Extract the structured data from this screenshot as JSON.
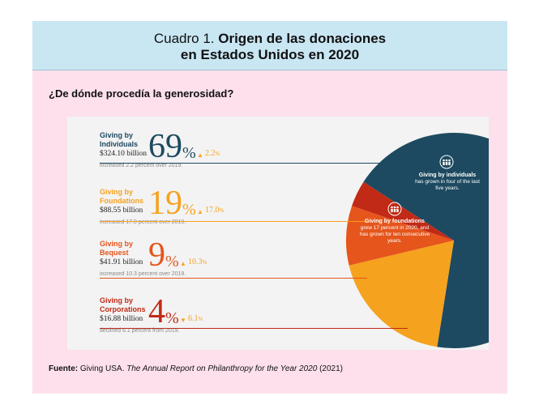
{
  "header": {
    "title_prefix": "Cuadro 1.",
    "title_line1_bold": "Origen de las donaciones",
    "title_line2": "en Estados Unidos en 2020"
  },
  "subtitle": "¿De dónde procedía la generosidad?",
  "source": {
    "label": "Fuente:",
    "text": "Giving USA.",
    "italic": "The Annual Report on Philanthropy for the Year 2020",
    "year": "(2021)"
  },
  "chart_data": {
    "type": "pie",
    "title": "¿De dónde procedía la generosidad?",
    "series": [
      {
        "name": "Giving by Individuals",
        "category_lines": [
          "Giving by",
          "Individuals"
        ],
        "percent": 69,
        "percent_label": "69",
        "amount": "$324.10 billion",
        "change": "2.2",
        "direction": "up",
        "note": "increased 2.2 percent over 2019.",
        "color": "#1d4a60"
      },
      {
        "name": "Giving by Foundations",
        "category_lines": [
          "Giving by",
          "Foundations"
        ],
        "percent": 19,
        "percent_label": "19",
        "amount": "$88.55 billion",
        "change": "17.0",
        "direction": "up",
        "note": "increased 17.0 percent over 2019.",
        "color": "#f5a21e"
      },
      {
        "name": "Giving by Bequest",
        "category_lines": [
          "Giving by",
          "Bequest"
        ],
        "percent": 9,
        "percent_label": "9",
        "amount": "$41.91 billion",
        "change": "10.3",
        "direction": "up",
        "note": "increased 10.3 percent over 2019.",
        "color": "#e5551c"
      },
      {
        "name": "Giving by Corporations",
        "category_lines": [
          "Giving by",
          "Corporations"
        ],
        "percent": 4,
        "percent_label": "4",
        "amount": "$16.88 billion",
        "change": "6.1",
        "direction": "down",
        "note": "declined 6.1 percent from 2019.",
        "color": "#c12a16"
      }
    ],
    "annotations": {
      "individuals": {
        "title": "Giving by individuals",
        "text": "has grown in four of the last five years."
      },
      "foundations": {
        "title": "Giving by foundations",
        "text": "grew 17 percent in 2020, and has grown for ten consecutive years."
      }
    },
    "arrow_color": "#f5a21e"
  }
}
